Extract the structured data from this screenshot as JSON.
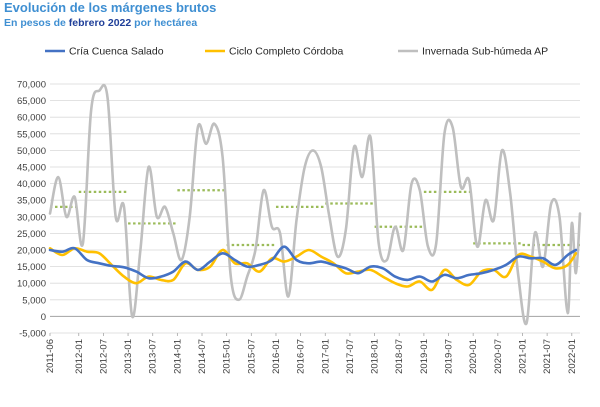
{
  "header": {
    "title": "Evolución de los márgenes brutos",
    "subtitle_pre": "En pesos de ",
    "subtitle_highlight": "febrero 2022",
    "subtitle_post": " por hectárea"
  },
  "colors": {
    "cria": "#4472c4",
    "ciclo": "#ffc000",
    "invernada": "#bfbfbf",
    "avg": "#9bbb59",
    "grid": "#d9d9d9"
  },
  "chart_data": {
    "type": "line",
    "title": "Evolución de los márgenes brutos",
    "subtitle": "En pesos de febrero 2022 por hectárea",
    "ylim": [
      -5000,
      70000
    ],
    "ytick_step": 5000,
    "ytick_labels": [
      "-5,000",
      "0",
      "5,000",
      "10,000",
      "15,000",
      "20,000",
      "25,000",
      "30,000",
      "35,000",
      "40,000",
      "45,000",
      "50,000",
      "55,000",
      "60,000",
      "65,000",
      "70,000"
    ],
    "xlim": [
      "2011-06",
      "2022-03"
    ],
    "xtick_labels": [
      "2011-06",
      "2012-01",
      "2012-07",
      "2013-01",
      "2013-07",
      "2014-01",
      "2014-07",
      "2015-01",
      "2015-07",
      "2016-01",
      "2016-07",
      "2017-01",
      "2017-07",
      "2018-01",
      "2018-07",
      "2019-01",
      "2019-07",
      "2020-01",
      "2020-07",
      "2021-01",
      "2021-07",
      "2022-01"
    ],
    "grid": "horizontal",
    "legend_position": "top",
    "series": [
      {
        "name": "Cría Cuenca Salado",
        "points": [
          [
            "2011-06",
            20000
          ],
          [
            "2011-09",
            19500
          ],
          [
            "2011-12",
            20500
          ],
          [
            "2012-03",
            17000
          ],
          [
            "2012-06",
            16000
          ],
          [
            "2012-09",
            15200
          ],
          [
            "2012-12",
            14800
          ],
          [
            "2013-03",
            13500
          ],
          [
            "2013-06",
            11500
          ],
          [
            "2013-09",
            12000
          ],
          [
            "2013-12",
            13500
          ],
          [
            "2014-03",
            16500
          ],
          [
            "2014-06",
            14000
          ],
          [
            "2014-09",
            16500
          ],
          [
            "2014-12",
            19000
          ],
          [
            "2015-03",
            17000
          ],
          [
            "2015-06",
            15000
          ],
          [
            "2015-09",
            15500
          ],
          [
            "2015-12",
            17000
          ],
          [
            "2016-03",
            21000
          ],
          [
            "2016-06",
            17000
          ],
          [
            "2016-09",
            16000
          ],
          [
            "2016-12",
            16500
          ],
          [
            "2017-03",
            15500
          ],
          [
            "2017-06",
            14500
          ],
          [
            "2017-09",
            13000
          ],
          [
            "2017-12",
            15000
          ],
          [
            "2018-03",
            14500
          ],
          [
            "2018-06",
            12000
          ],
          [
            "2018-09",
            11000
          ],
          [
            "2018-12",
            12000
          ],
          [
            "2019-03",
            10500
          ],
          [
            "2019-06",
            12500
          ],
          [
            "2019-09",
            11500
          ],
          [
            "2019-12",
            12500
          ],
          [
            "2020-03",
            13000
          ],
          [
            "2020-06",
            14000
          ],
          [
            "2020-09",
            15500
          ],
          [
            "2020-12",
            18000
          ],
          [
            "2021-03",
            17500
          ],
          [
            "2021-06",
            17500
          ],
          [
            "2021-09",
            15500
          ],
          [
            "2021-12",
            18500
          ],
          [
            "2022-02",
            20000
          ]
        ]
      },
      {
        "name": "Ciclo Completo Córdoba",
        "points": [
          [
            "2011-06",
            20500
          ],
          [
            "2011-09",
            18500
          ],
          [
            "2011-12",
            20500
          ],
          [
            "2012-03",
            19500
          ],
          [
            "2012-06",
            19000
          ],
          [
            "2012-09",
            15500
          ],
          [
            "2012-12",
            12000
          ],
          [
            "2013-03",
            10000
          ],
          [
            "2013-06",
            12000
          ],
          [
            "2013-09",
            11000
          ],
          [
            "2013-12",
            11000
          ],
          [
            "2014-03",
            16000
          ],
          [
            "2014-06",
            14000
          ],
          [
            "2014-09",
            15000
          ],
          [
            "2014-12",
            20000
          ],
          [
            "2015-03",
            16000
          ],
          [
            "2015-06",
            16000
          ],
          [
            "2015-09",
            13500
          ],
          [
            "2015-12",
            17500
          ],
          [
            "2016-03",
            16500
          ],
          [
            "2016-06",
            18000
          ],
          [
            "2016-09",
            20000
          ],
          [
            "2016-12",
            18000
          ],
          [
            "2017-03",
            16000
          ],
          [
            "2017-06",
            13000
          ],
          [
            "2017-09",
            13500
          ],
          [
            "2017-12",
            14000
          ],
          [
            "2018-03",
            12000
          ],
          [
            "2018-06",
            10000
          ],
          [
            "2018-09",
            9000
          ],
          [
            "2018-12",
            10500
          ],
          [
            "2019-03",
            8000
          ],
          [
            "2019-06",
            14000
          ],
          [
            "2019-09",
            11000
          ],
          [
            "2019-12",
            9500
          ],
          [
            "2020-03",
            13500
          ],
          [
            "2020-06",
            14000
          ],
          [
            "2020-09",
            12000
          ],
          [
            "2020-12",
            18500
          ],
          [
            "2021-03",
            18000
          ],
          [
            "2021-06",
            16500
          ],
          [
            "2021-09",
            14500
          ],
          [
            "2021-12",
            15500
          ],
          [
            "2022-02",
            19000
          ]
        ]
      },
      {
        "name": "Invernada Sub-húmeda AP",
        "points": [
          [
            "2011-06",
            31000
          ],
          [
            "2011-08",
            42000
          ],
          [
            "2011-10",
            30000
          ],
          [
            "2011-12",
            36000
          ],
          [
            "2012-02",
            22000
          ],
          [
            "2012-04",
            62000
          ],
          [
            "2012-06",
            68000
          ],
          [
            "2012-08",
            66000
          ],
          [
            "2012-10",
            30000
          ],
          [
            "2012-12",
            33000
          ],
          [
            "2013-02",
            0
          ],
          [
            "2013-04",
            20000
          ],
          [
            "2013-06",
            45000
          ],
          [
            "2013-08",
            30000
          ],
          [
            "2013-10",
            33000
          ],
          [
            "2013-12",
            25000
          ],
          [
            "2014-02",
            17000
          ],
          [
            "2014-04",
            30000
          ],
          [
            "2014-06",
            57000
          ],
          [
            "2014-08",
            52000
          ],
          [
            "2014-10",
            58000
          ],
          [
            "2014-12",
            48000
          ],
          [
            "2015-02",
            12000
          ],
          [
            "2015-04",
            5000
          ],
          [
            "2015-06",
            12000
          ],
          [
            "2015-08",
            20000
          ],
          [
            "2015-10",
            38000
          ],
          [
            "2015-12",
            27000
          ],
          [
            "2016-02",
            25000
          ],
          [
            "2016-04",
            6000
          ],
          [
            "2016-06",
            29000
          ],
          [
            "2016-08",
            45000
          ],
          [
            "2016-10",
            50000
          ],
          [
            "2016-12",
            45000
          ],
          [
            "2017-02",
            30000
          ],
          [
            "2017-04",
            18000
          ],
          [
            "2017-06",
            26000
          ],
          [
            "2017-08",
            51000
          ],
          [
            "2017-10",
            42000
          ],
          [
            "2017-12",
            54000
          ],
          [
            "2018-02",
            22000
          ],
          [
            "2018-04",
            17000
          ],
          [
            "2018-06",
            27000
          ],
          [
            "2018-08",
            20000
          ],
          [
            "2018-10",
            40000
          ],
          [
            "2018-12",
            38000
          ],
          [
            "2019-02",
            21000
          ],
          [
            "2019-04",
            22000
          ],
          [
            "2019-06",
            55000
          ],
          [
            "2019-08",
            57000
          ],
          [
            "2019-10",
            39000
          ],
          [
            "2019-12",
            41000
          ],
          [
            "2020-02",
            21000
          ],
          [
            "2020-04",
            35000
          ],
          [
            "2020-06",
            29000
          ],
          [
            "2020-08",
            50000
          ],
          [
            "2020-10",
            37000
          ],
          [
            "2020-12",
            12000
          ],
          [
            "2021-02",
            -2000
          ],
          [
            "2021-04",
            25000
          ],
          [
            "2021-06",
            15000
          ],
          [
            "2021-08",
            34000
          ],
          [
            "2021-10",
            30000
          ],
          [
            "2021-12",
            1000
          ],
          [
            "2022-01",
            28000
          ],
          [
            "2022-02",
            13000
          ],
          [
            "2022-03",
            31000
          ]
        ]
      }
    ],
    "average_segments": [
      {
        "from": "2011-06",
        "to": "2012-01",
        "value": 33000
      },
      {
        "from": "2012-01",
        "to": "2013-01",
        "value": 37500
      },
      {
        "from": "2013-01",
        "to": "2014-01",
        "value": 28000
      },
      {
        "from": "2014-01",
        "to": "2015-01",
        "value": 38000
      },
      {
        "from": "2015-01",
        "to": "2016-01",
        "value": 21500
      },
      {
        "from": "2016-01",
        "to": "2017-01",
        "value": 33000
      },
      {
        "from": "2017-01",
        "to": "2018-01",
        "value": 34000
      },
      {
        "from": "2018-01",
        "to": "2019-01",
        "value": 27000
      },
      {
        "from": "2019-01",
        "to": "2020-01",
        "value": 37500
      },
      {
        "from": "2020-01",
        "to": "2021-01",
        "value": 22000
      },
      {
        "from": "2021-01",
        "to": "2022-03",
        "value": 21500
      }
    ]
  }
}
